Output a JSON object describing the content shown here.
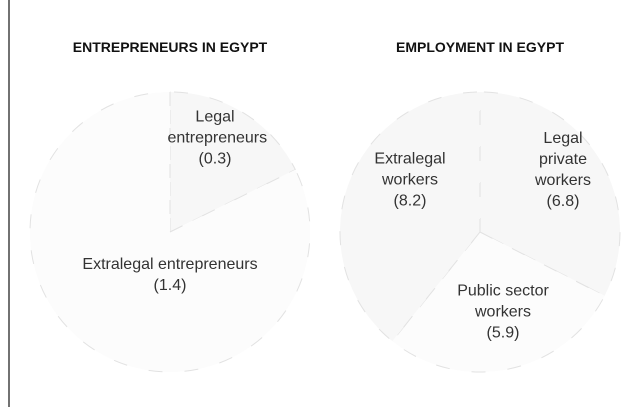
{
  "chart_data": [
    {
      "type": "pie",
      "title": "ENTREPRENEURS IN EGYPT",
      "categories": [
        "Legal entrepreneurs",
        "Extralegal entrepreneurs"
      ],
      "values": [
        0.3,
        1.4
      ],
      "value_labels": [
        "(0.3)",
        "(1.4)"
      ]
    },
    {
      "type": "pie",
      "title": "EMPLOYMENT IN EGYPT",
      "categories": [
        "Legal private workers",
        "Public sector workers",
        "Extralegal workers"
      ],
      "values": [
        6.8,
        5.9,
        8.2
      ],
      "value_labels": [
        "(6.8)",
        "(5.9)",
        "(8.2)"
      ]
    }
  ]
}
